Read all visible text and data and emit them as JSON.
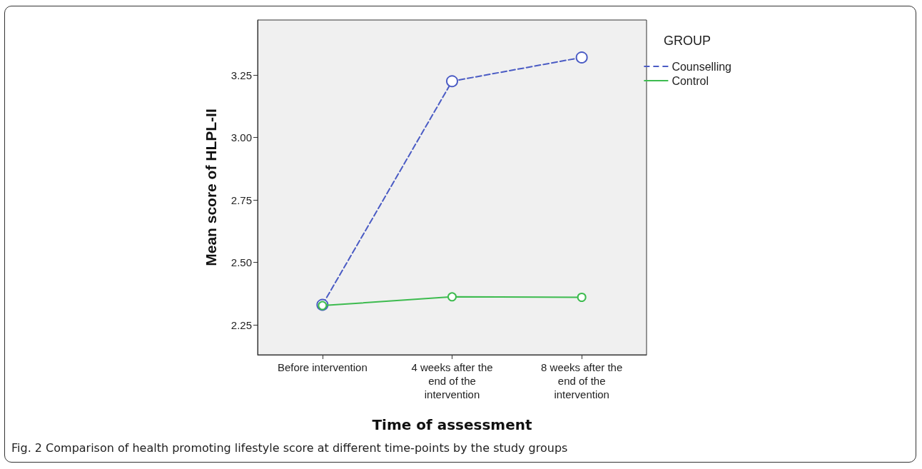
{
  "chart_data": {
    "type": "line",
    "xlabel": "Time of assessment",
    "ylabel": "Mean score of HLPL-II",
    "legend_title": "GROUP",
    "legend": "top right",
    "categories": [
      "Before intervention",
      "4 weeks after the\nend of the\nintervention",
      "8 weeks after the\nend of the\nintervention"
    ],
    "series": [
      {
        "name": "Counselling",
        "color": "#4a5bc4",
        "line_style": "dashed",
        "values": [
          2.33,
          3.225,
          3.32
        ]
      },
      {
        "name": "Control",
        "color": "#3dbb4f",
        "line_style": "solid",
        "values": [
          2.327,
          2.362,
          2.36
        ]
      }
    ],
    "ylim": [
      2.13,
      3.47
    ],
    "yticks": [
      {
        "value": 2.25,
        "label": "2.25"
      },
      {
        "value": 2.5,
        "label": "2.50"
      },
      {
        "value": 2.75,
        "label": "2.75"
      },
      {
        "value": 3.0,
        "label": "3.00"
      },
      {
        "value": 3.25,
        "label": "3.25"
      }
    ],
    "grid": false,
    "marker": "circle",
    "annotations": [
      "Fig. 2 Comparison of health promoting lifestyle score at different time-points by the study groups"
    ]
  }
}
